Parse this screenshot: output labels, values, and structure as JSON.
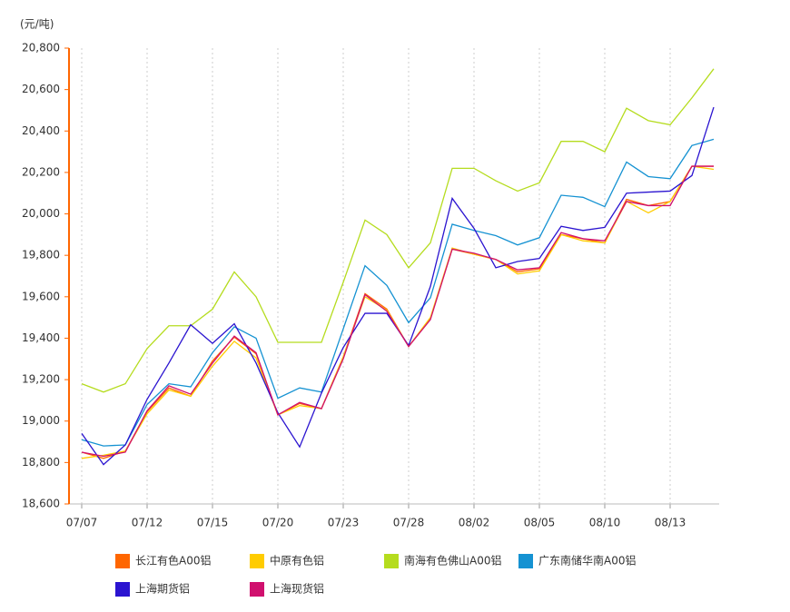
{
  "chart_data": {
    "type": "line",
    "y_label": "(元/吨)",
    "categories": [
      "07/07",
      null,
      null,
      "07/12",
      null,
      null,
      "07/15",
      null,
      null,
      "07/20",
      null,
      null,
      "07/23",
      null,
      null,
      "07/28",
      null,
      null,
      "08/02",
      null,
      null,
      "08/05",
      null,
      null,
      "08/10",
      null,
      null,
      "08/13",
      null,
      null
    ],
    "ylim": [
      18600,
      20800
    ],
    "yticks": [
      {
        "value": 18600,
        "label": "18,600"
      },
      {
        "value": 18800,
        "label": "18,800"
      },
      {
        "value": 19000,
        "label": "19,000"
      },
      {
        "value": 19200,
        "label": "19,200"
      },
      {
        "value": 19400,
        "label": "19,400"
      },
      {
        "value": 19600,
        "label": "19,600"
      },
      {
        "value": 19800,
        "label": "19,800"
      },
      {
        "value": 20000,
        "label": "20,000"
      },
      {
        "value": 20200,
        "label": "20,200"
      },
      {
        "value": 20400,
        "label": "20,400"
      },
      {
        "value": 20600,
        "label": "20,600"
      },
      {
        "value": 20800,
        "label": "20,800"
      }
    ],
    "x_grid": true,
    "series": [
      {
        "name": "长江有色A00铝",
        "color": "#ff6600",
        "values": [
          18850,
          18820,
          18855,
          19045,
          19160,
          19120,
          19290,
          19405,
          19325,
          19030,
          19085,
          19060,
          19310,
          19615,
          19540,
          19360,
          19495,
          19830,
          19805,
          19780,
          19720,
          19735,
          19900,
          19880,
          19860,
          20070,
          20040,
          20060,
          20230,
          20230
        ]
      },
      {
        "name": "中原有色铝",
        "color": "#ffcc00",
        "values": [
          18820,
          18835,
          18855,
          19035,
          19150,
          19120,
          19265,
          19385,
          19305,
          19030,
          19075,
          19060,
          19310,
          19600,
          19535,
          19360,
          19500,
          19835,
          19805,
          19780,
          19710,
          19725,
          19900,
          19870,
          19860,
          20060,
          20005,
          20060,
          20230,
          20215
        ]
      },
      {
        "name": "南海有色佛山A00铝",
        "color": "#b5dc1e",
        "values": [
          19180,
          19140,
          19180,
          19350,
          19460,
          19460,
          19540,
          19720,
          19600,
          19380,
          19380,
          19380,
          19670,
          19970,
          19900,
          19740,
          19860,
          20220,
          20220,
          20160,
          20110,
          20150,
          20350,
          20350,
          20300,
          20510,
          20450,
          20430,
          20560,
          20700
        ]
      },
      {
        "name": "广东南储华南A00铝",
        "color": "#1592d2",
        "values": [
          18910,
          18880,
          18885,
          19080,
          19180,
          19165,
          19330,
          19455,
          19400,
          19110,
          19160,
          19140,
          19445,
          19750,
          19655,
          19475,
          19595,
          19950,
          19920,
          19895,
          19850,
          19885,
          20090,
          20080,
          20035,
          20250,
          20180,
          20170,
          20330,
          20360
        ]
      },
      {
        "name": "上海期货铝",
        "color": "#2b14d0",
        "values": [
          18940,
          18790,
          18885,
          19105,
          19280,
          19465,
          19375,
          19470,
          19280,
          19040,
          18875,
          19135,
          19355,
          19520,
          19520,
          19365,
          19650,
          20075,
          19930,
          19740,
          19770,
          19785,
          19940,
          19920,
          19935,
          20100,
          20105,
          20110,
          20185,
          20515
        ]
      },
      {
        "name": "上海现货铝",
        "color": "#d0106e",
        "values": [
          18850,
          18830,
          18850,
          19050,
          19170,
          19130,
          19280,
          19410,
          19330,
          19030,
          19090,
          19060,
          19300,
          19610,
          19530,
          19360,
          19490,
          19830,
          19810,
          19780,
          19730,
          19740,
          19910,
          19880,
          19870,
          20060,
          20040,
          20040,
          20230,
          20230
        ]
      }
    ]
  }
}
